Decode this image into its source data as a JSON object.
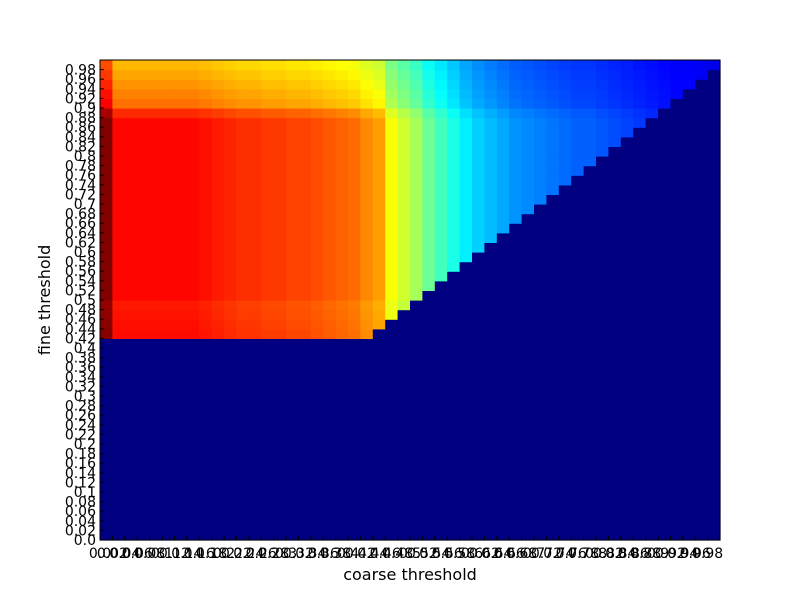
{
  "chart_data": {
    "type": "heatmap",
    "title": "",
    "xlabel": "coarse threshold",
    "ylabel": "fine threshold",
    "colormap": "jet",
    "value_range": [
      0,
      1
    ],
    "x_ticks": [
      "0.0",
      "0.02",
      "0.04",
      "0.06",
      "0.08",
      "0.1",
      "0.12",
      "0.14",
      "0.16",
      "0.18",
      "0.2",
      "0.22",
      "0.24",
      "0.26",
      "0.28",
      "0.3",
      "0.32",
      "0.34",
      "0.36",
      "0.38",
      "0.4",
      "0.42",
      "0.44",
      "0.46",
      "0.48",
      "0.5",
      "0.52",
      "0.54",
      "0.56",
      "0.58",
      "0.6",
      "0.62",
      "0.64",
      "0.66",
      "0.68",
      "0.7",
      "0.72",
      "0.74",
      "0.76",
      "0.78",
      "0.8",
      "0.82",
      "0.84",
      "0.86",
      "0.88",
      "0.9",
      "0.92",
      "0.94",
      "0.96",
      "0.98"
    ],
    "y_ticks": [
      "0.0",
      "0.02",
      "0.04",
      "0.06",
      "0.08",
      "0.1",
      "0.12",
      "0.14",
      "0.16",
      "0.18",
      "0.2",
      "0.22",
      "0.24",
      "0.26",
      "0.28",
      "0.3",
      "0.32",
      "0.34",
      "0.36",
      "0.38",
      "0.4",
      "0.42",
      "0.44",
      "0.46",
      "0.48",
      "0.5",
      "0.52",
      "0.54",
      "0.56",
      "0.58",
      "0.6",
      "0.62",
      "0.64",
      "0.66",
      "0.68",
      "0.7",
      "0.72",
      "0.74",
      "0.76",
      "0.78",
      "0.8",
      "0.82",
      "0.84",
      "0.86",
      "0.88",
      "0.9",
      "0.92",
      "0.94",
      "0.96",
      "0.98"
    ],
    "column_profile": [
      1.0,
      0.87,
      0.87,
      0.87,
      0.87,
      0.87,
      0.87,
      0.87,
      0.86,
      0.85,
      0.84,
      0.83,
      0.83,
      0.82,
      0.82,
      0.81,
      0.81,
      0.8,
      0.79,
      0.78,
      0.77,
      0.74,
      0.72,
      0.62,
      0.58,
      0.54,
      0.48,
      0.44,
      0.4,
      0.36,
      0.33,
      0.31,
      0.29,
      0.27,
      0.26,
      0.25,
      0.24,
      0.23,
      0.22,
      0.22,
      0.21,
      0.2,
      0.19,
      0.18,
      0.17,
      0.16,
      0.15,
      0.15,
      0.14,
      0.13
    ],
    "row_profile": [
      0.0,
      0.0,
      0.0,
      0.0,
      0.0,
      0.0,
      0.0,
      0.0,
      0.0,
      0.0,
      0.0,
      0.0,
      0.0,
      0.0,
      0.0,
      0.0,
      0.0,
      0.0,
      0.0,
      0.0,
      0.0,
      0.995,
      0.99,
      0.985,
      0.98,
      1.0,
      1.0,
      1.0,
      1.0,
      1.0,
      1.0,
      1.0,
      1.0,
      1.0,
      1.0,
      1.0,
      1.0,
      1.0,
      1.0,
      1.0,
      1.0,
      1.0,
      1.0,
      1.0,
      0.96,
      0.88,
      0.86,
      0.84,
      0.82,
      0.8
    ],
    "filled_region_rule": "cells with coarse threshold <= fine threshold and fine threshold >= 0.42 are filled; all other cells are at the minimum value"
  }
}
